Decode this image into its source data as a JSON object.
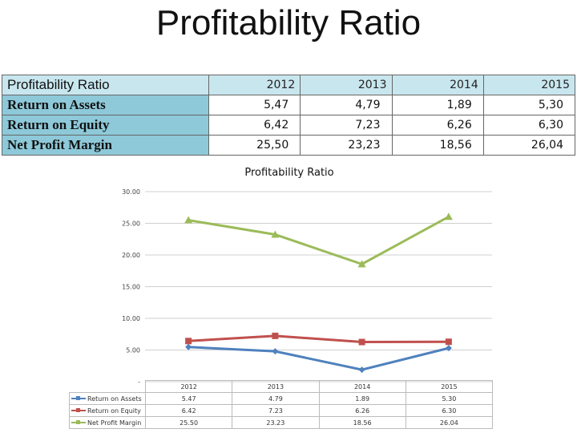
{
  "slide": {
    "title": "Profitability Ratio"
  },
  "table": {
    "header_label": "Profitability Ratio",
    "years": [
      "2012",
      "2013",
      "2014",
      "2015"
    ],
    "rows": [
      {
        "label": "Return on Assets",
        "values": [
          "5,47",
          "4,79",
          "1,89",
          "5,30"
        ]
      },
      {
        "label": "Return on Equity",
        "values": [
          "6,42",
          "7,23",
          "6,26",
          "6,30"
        ]
      },
      {
        "label": "Net Profit Margin",
        "values": [
          "25,50",
          "23,23",
          "18,56",
          "26,04"
        ]
      }
    ]
  },
  "chart_data": {
    "type": "line",
    "title": "Profitability Ratio",
    "categories": [
      "2012",
      "2013",
      "2014",
      "2015"
    ],
    "ylim": [
      0,
      30
    ],
    "yticks": [
      0,
      5,
      10,
      15,
      20,
      25,
      30
    ],
    "ytick_labels": [
      "-",
      "5.00",
      "10.00",
      "15.00",
      "20.00",
      "25.00",
      "30.00"
    ],
    "grid": true,
    "legend": "data-table-bottom",
    "series": [
      {
        "name": "Return on Assets",
        "values": [
          5.47,
          4.79,
          1.89,
          5.3
        ],
        "labels": [
          "5.47",
          "4.79",
          "1.89",
          "5.30"
        ],
        "color": "#4f81bd",
        "marker": "diamond"
      },
      {
        "name": "Return on Equity",
        "values": [
          6.42,
          7.23,
          6.26,
          6.3
        ],
        "labels": [
          "6.42",
          "7.23",
          "6.26",
          "6.30"
        ],
        "color": "#c0504d",
        "marker": "square"
      },
      {
        "name": "Net Profit Margin",
        "values": [
          25.5,
          23.23,
          18.56,
          26.04
        ],
        "labels": [
          "25.50",
          "23.23",
          "18.56",
          "26.04"
        ],
        "color": "#9bbb59",
        "marker": "triangle"
      }
    ]
  }
}
